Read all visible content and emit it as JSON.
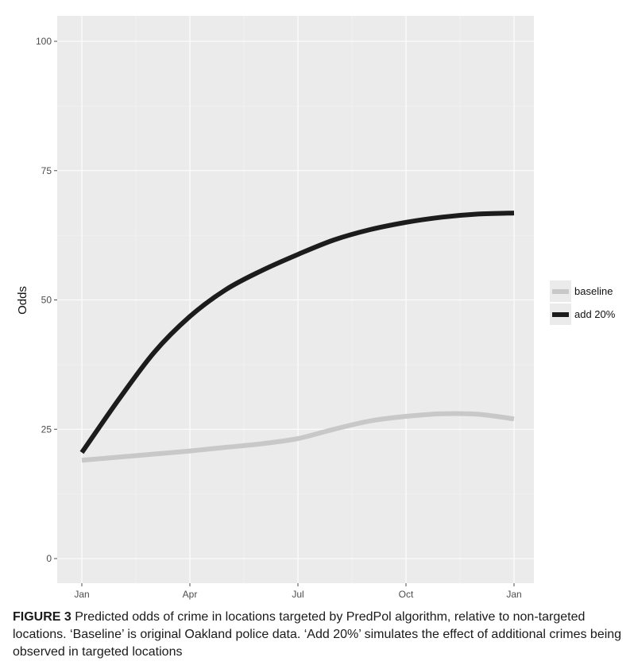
{
  "chart_data": {
    "type": "line",
    "title": "",
    "xlabel": "",
    "ylabel": "Odds",
    "ylim": [
      0,
      100
    ],
    "yticks": [
      0,
      25,
      50,
      75,
      100
    ],
    "xticks": [
      "Jan",
      "Apr",
      "Jul",
      "Oct",
      "Jan"
    ],
    "x": [
      0,
      1,
      2,
      3,
      4,
      5,
      6,
      7,
      8,
      9,
      10,
      11,
      12
    ],
    "grid": true,
    "legend_position": "right",
    "series": [
      {
        "name": "baseline",
        "color": "#c8c8c8",
        "values": [
          19,
          19.6,
          20.2,
          20.8,
          21.5,
          22.2,
          23.2,
          25.0,
          26.6,
          27.5,
          28.0,
          27.9,
          27.0
        ]
      },
      {
        "name": "add 20%",
        "color": "#1c1c1c",
        "values": [
          20.5,
          30.5,
          39.8,
          46.8,
          52.0,
          55.7,
          58.8,
          61.6,
          63.6,
          65.0,
          66.0,
          66.6,
          66.8
        ]
      }
    ]
  },
  "caption": {
    "label": "FIGURE 3",
    "text": " Predicted odds of crime in locations targeted by PredPol algorithm, relative to non-targeted locations. ‘Baseline’ is original Oakland police data. ‘Add 20%’ simulates the effect of additional crimes being observed in targeted locations"
  }
}
